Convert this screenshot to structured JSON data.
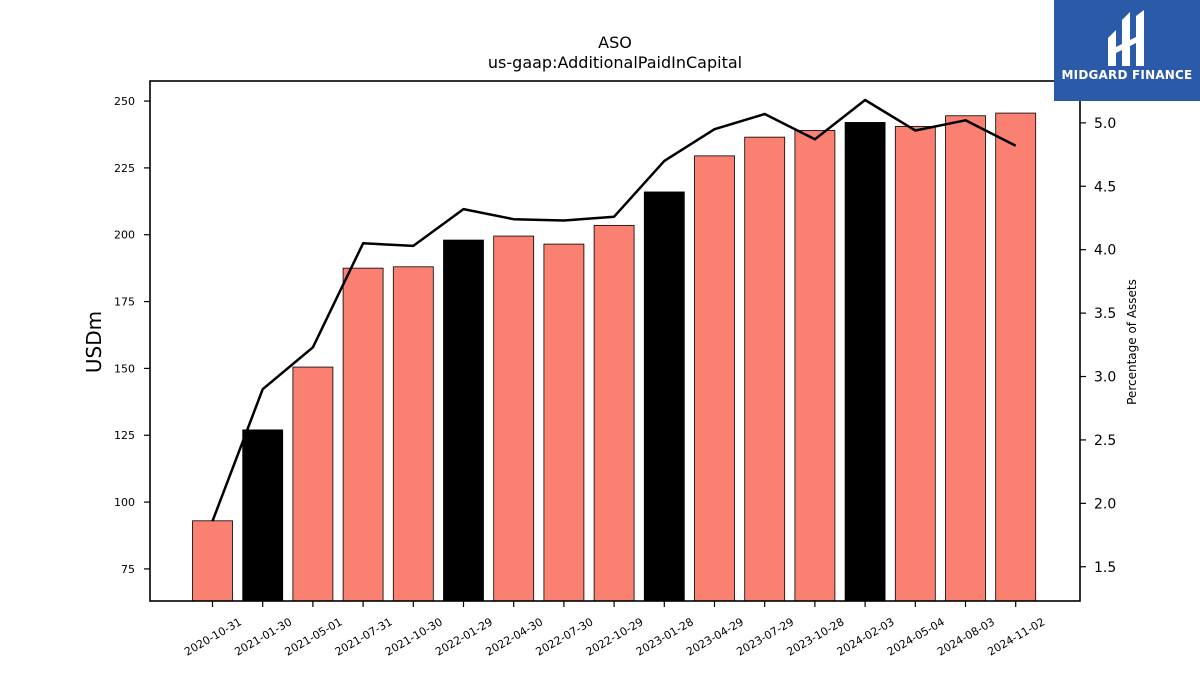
{
  "chart_data": {
    "type": "bar",
    "title": "ASO",
    "subtitle": "us-gaap:AdditionalPaidInCapital",
    "ylabel": "USDm",
    "y2label": "Percentage of Assets",
    "ylim": [
      63,
      257.5
    ],
    "y2lim": [
      1.23,
      5.33
    ],
    "yticks": [
      75,
      100,
      125,
      150,
      175,
      200,
      225,
      250
    ],
    "y2ticks": [
      1.5,
      2.0,
      2.5,
      3.0,
      3.5,
      4.0,
      4.5,
      5.0
    ],
    "categories": [
      "2020-10-31",
      "2021-01-30",
      "2021-05-01",
      "2021-07-31",
      "2021-10-30",
      "2022-01-29",
      "2022-04-30",
      "2022-07-30",
      "2022-10-29",
      "2023-01-28",
      "2023-04-29",
      "2023-07-29",
      "2023-10-28",
      "2024-02-03",
      "2024-05-04",
      "2024-08-03",
      "2024-11-02"
    ],
    "series": [
      {
        "type": "bar",
        "values": [
          93,
          127,
          150.5,
          187.5,
          188,
          198,
          199.5,
          196.5,
          203.5,
          216,
          229.5,
          236.5,
          239,
          242,
          240.5,
          244.5,
          245.5
        ],
        "colors": [
          "#fa8072",
          "#000000",
          "#fa8072",
          "#fa8072",
          "#fa8072",
          "#000000",
          "#fa8072",
          "#fa8072",
          "#fa8072",
          "#000000",
          "#fa8072",
          "#fa8072",
          "#fa8072",
          "#000000",
          "#fa8072",
          "#fa8072",
          "#fa8072"
        ]
      },
      {
        "type": "line",
        "axis": "right",
        "color": "#000000",
        "values": [
          1.86,
          2.9,
          3.23,
          4.05,
          4.03,
          4.32,
          4.24,
          4.23,
          4.26,
          4.7,
          4.95,
          5.07,
          4.87,
          5.18,
          4.94,
          5.02,
          4.82
        ]
      }
    ]
  },
  "logo": {
    "text": "MIDGARD FINANCE",
    "bg": "#2b5aa8"
  }
}
